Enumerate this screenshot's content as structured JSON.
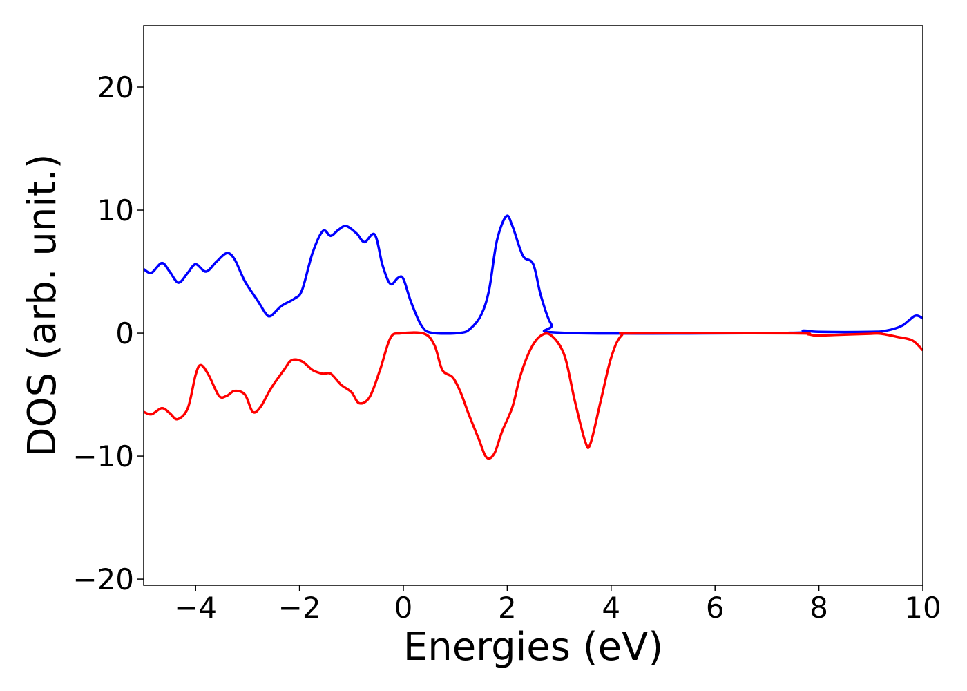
{
  "chart_data": {
    "type": "line",
    "title": "",
    "xlabel": "Energies (eV)",
    "ylabel": "DOS (arb. unit.)",
    "xlim": [
      -5,
      10
    ],
    "ylim": [
      -20.5,
      25
    ],
    "x_ticks": [
      -4,
      -2,
      0,
      2,
      4,
      6,
      8,
      10
    ],
    "x_tick_labels": [
      "−4",
      "−2",
      "0",
      "2",
      "4",
      "6",
      "8",
      "10"
    ],
    "y_ticks": [
      -20,
      -10,
      0,
      10,
      20
    ],
    "y_tick_labels": [
      "−20",
      "−10",
      "0",
      "10",
      "20"
    ],
    "grid": false,
    "legend": "none",
    "series": [
      {
        "color": "#0000ff",
        "points": [
          [
            -5.0,
            5.2
          ],
          [
            -4.85,
            4.9
          ],
          [
            -4.65,
            5.7
          ],
          [
            -4.5,
            5.0
          ],
          [
            -4.33,
            4.1
          ],
          [
            -4.15,
            4.9
          ],
          [
            -4.0,
            5.6
          ],
          [
            -3.8,
            5.0
          ],
          [
            -3.6,
            5.8
          ],
          [
            -3.4,
            6.5
          ],
          [
            -3.25,
            6.0
          ],
          [
            -3.05,
            4.2
          ],
          [
            -2.8,
            2.6
          ],
          [
            -2.65,
            1.6
          ],
          [
            -2.55,
            1.4
          ],
          [
            -2.35,
            2.2
          ],
          [
            -2.1,
            2.8
          ],
          [
            -1.95,
            3.5
          ],
          [
            -1.75,
            6.5
          ],
          [
            -1.55,
            8.3
          ],
          [
            -1.4,
            7.9
          ],
          [
            -1.25,
            8.4
          ],
          [
            -1.1,
            8.7
          ],
          [
            -0.9,
            8.1
          ],
          [
            -0.75,
            7.4
          ],
          [
            -0.55,
            8.0
          ],
          [
            -0.4,
            5.5
          ],
          [
            -0.25,
            4.0
          ],
          [
            -0.1,
            4.5
          ],
          [
            0.0,
            4.4
          ],
          [
            0.15,
            2.5
          ],
          [
            0.35,
            0.6
          ],
          [
            0.55,
            0.02
          ],
          [
            1.1,
            0.02
          ],
          [
            1.3,
            0.4
          ],
          [
            1.5,
            1.5
          ],
          [
            1.65,
            3.5
          ],
          [
            1.8,
            7.5
          ],
          [
            1.98,
            9.5
          ],
          [
            2.1,
            8.7
          ],
          [
            2.3,
            6.3
          ],
          [
            2.5,
            5.6
          ],
          [
            2.65,
            3.0
          ],
          [
            2.85,
            0.7
          ],
          [
            3.1,
            0.02
          ],
          [
            7.4,
            0.02
          ],
          [
            7.7,
            0.2
          ],
          [
            8.0,
            0.1
          ],
          [
            9.0,
            0.1
          ],
          [
            9.3,
            0.2
          ],
          [
            9.6,
            0.6
          ],
          [
            9.85,
            1.4
          ],
          [
            10.0,
            1.2
          ]
        ]
      },
      {
        "color": "#ff0000",
        "points": [
          [
            -5.0,
            -6.4
          ],
          [
            -4.85,
            -6.6
          ],
          [
            -4.65,
            -6.1
          ],
          [
            -4.5,
            -6.5
          ],
          [
            -4.35,
            -7.0
          ],
          [
            -4.15,
            -6.1
          ],
          [
            -4.0,
            -3.4
          ],
          [
            -3.9,
            -2.6
          ],
          [
            -3.75,
            -3.4
          ],
          [
            -3.55,
            -5.1
          ],
          [
            -3.4,
            -5.1
          ],
          [
            -3.25,
            -4.7
          ],
          [
            -3.05,
            -5.0
          ],
          [
            -2.9,
            -6.4
          ],
          [
            -2.75,
            -6.0
          ],
          [
            -2.55,
            -4.5
          ],
          [
            -2.3,
            -3.0
          ],
          [
            -2.15,
            -2.2
          ],
          [
            -1.95,
            -2.3
          ],
          [
            -1.75,
            -3.0
          ],
          [
            -1.55,
            -3.3
          ],
          [
            -1.4,
            -3.3
          ],
          [
            -1.2,
            -4.2
          ],
          [
            -1.0,
            -4.8
          ],
          [
            -0.85,
            -5.7
          ],
          [
            -0.65,
            -5.2
          ],
          [
            -0.45,
            -3.0
          ],
          [
            -0.25,
            -0.4
          ],
          [
            -0.05,
            -0.02
          ],
          [
            0.4,
            -0.05
          ],
          [
            0.6,
            -1.0
          ],
          [
            0.75,
            -3.0
          ],
          [
            0.95,
            -3.6
          ],
          [
            1.1,
            -4.8
          ],
          [
            1.25,
            -6.5
          ],
          [
            1.45,
            -8.6
          ],
          [
            1.6,
            -10.1
          ],
          [
            1.75,
            -9.8
          ],
          [
            1.9,
            -8.0
          ],
          [
            2.1,
            -6.0
          ],
          [
            2.25,
            -3.5
          ],
          [
            2.45,
            -1.3
          ],
          [
            2.65,
            -0.2
          ],
          [
            2.85,
            -0.2
          ],
          [
            3.1,
            -1.8
          ],
          [
            3.3,
            -5.5
          ],
          [
            3.5,
            -8.8
          ],
          [
            3.6,
            -9.0
          ],
          [
            3.8,
            -5.5
          ],
          [
            4.0,
            -2.0
          ],
          [
            4.2,
            -0.2
          ],
          [
            4.5,
            -0.02
          ],
          [
            7.5,
            -0.02
          ],
          [
            7.8,
            -0.1
          ],
          [
            7.95,
            -0.2
          ],
          [
            8.3,
            -0.15
          ],
          [
            9.0,
            -0.05
          ],
          [
            9.2,
            -0.05
          ],
          [
            9.5,
            -0.3
          ],
          [
            9.8,
            -0.6
          ],
          [
            10.0,
            -1.4
          ]
        ]
      }
    ]
  }
}
